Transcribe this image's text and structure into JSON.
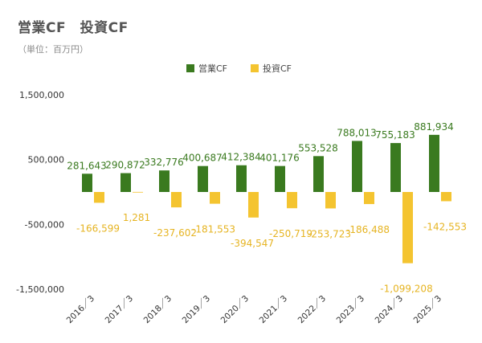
{
  "header": {
    "title": "営業CF　投資CF",
    "unit": "（単位：百万円）"
  },
  "chart_data": {
    "type": "bar",
    "categories": [
      "2016／3",
      "2017／3",
      "2018／3",
      "2019／3",
      "2020／3",
      "2021／3",
      "2022／3",
      "2023／3",
      "2024／3",
      "2025／3"
    ],
    "series": [
      {
        "name": "営業CF",
        "color": "#3a7a1f",
        "values": [
          281643,
          290872,
          332776,
          400687,
          412384,
          401176,
          553528,
          788013,
          755183,
          881934
        ],
        "labels": [
          "281,643",
          "290,872",
          "332,776",
          "400,687",
          "412,384",
          "401,176",
          "553,528",
          "788,013",
          "755,183",
          "881,934"
        ]
      },
      {
        "name": "投資CF",
        "color": "#f4c430",
        "values": [
          -166599,
          1281,
          -237602,
          -181553,
          -394547,
          -250719,
          -253723,
          -186488,
          -1099208,
          -142553
        ],
        "labels": [
          "-166,599",
          "1,281",
          "-237,602",
          "-181,553",
          "-394,547",
          "-250,719",
          "-253,723",
          "-186,488",
          "-1,099,208",
          "-142,553"
        ]
      }
    ],
    "ylim": [
      -1500000,
      1500000
    ],
    "yticks": [
      -1500000,
      -500000,
      500000,
      1500000
    ],
    "ytick_labels": [
      "-1,500,000",
      "-500,000",
      "500,000",
      "1,500,000"
    ],
    "legend_position": "top-center",
    "grid": false
  }
}
